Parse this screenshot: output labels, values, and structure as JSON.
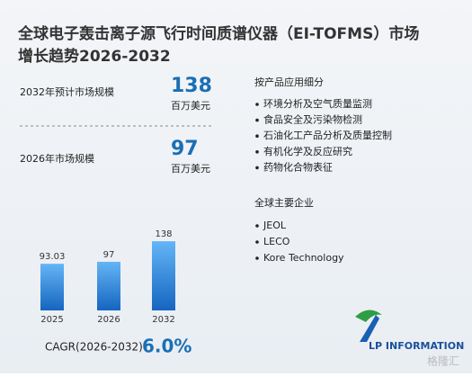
{
  "title": {
    "line1": "全球电子轰击离子源飞行时间质谱仪器（EI-TOFMS）市场",
    "line2": "增长趋势2026-2032"
  },
  "stats": [
    {
      "label": "2032年预计市场规模",
      "value": "138",
      "unit": "百万美元"
    },
    {
      "label": "2026年市场规模",
      "value": "97",
      "unit": "百万美元"
    }
  ],
  "segments": {
    "heading": "按产品应用细分",
    "items": [
      "环境分析及空气质量监测",
      "食品安全及污染物检测",
      "石油化工产品分析及质量控制",
      "有机化学及反应研究",
      "药物化合物表征"
    ]
  },
  "companies": {
    "heading": "全球主要企业",
    "items": [
      "JEOL",
      "LECO",
      "Kore Technology"
    ]
  },
  "cagr": {
    "label": "CAGR(2026-2032)",
    "value": "6.0%"
  },
  "logo": "LP INFORMATION",
  "watermark": "格隆汇",
  "chart_data": {
    "type": "bar",
    "categories": [
      "2025",
      "2026",
      "2032"
    ],
    "values": [
      93.03,
      97,
      138
    ],
    "color": "#1e88e5",
    "ylim": [
      0,
      140
    ]
  }
}
